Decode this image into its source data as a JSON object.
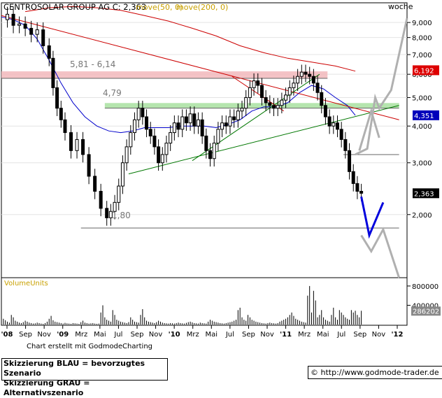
{
  "header": {
    "title": "CENTROSOLAR GROUP AG C: 2,363",
    "ma50": "move(50, 0)",
    "ma200": "move(200, 0)",
    "period": "woche"
  },
  "credit": "Chart erstellt mit GodmodeCharting",
  "legend_blue": "Skizzierung BLAU = bevorzugtes Szenario",
  "legend_gray": "Skizzierung GRAU = Alternativszenario",
  "website": "© http://www.godmode-trader.de",
  "colors": {
    "price": "#000000",
    "ma50": "#0000cc",
    "ma200": "#cc0000",
    "trend_red": "#cc0000",
    "trend_green": "#007700",
    "zone_red": "#f2b8bc",
    "zone_green": "#a8e0a0",
    "scenario_blue": "#0000dd",
    "scenario_gray": "#b0b0b0",
    "badge_red": "#dd0000",
    "badge_blue": "#0000bb"
  },
  "chart_data": {
    "type": "candlestick",
    "interval": "woche",
    "y_scale": "log",
    "ylim": [
      1.22,
      10.5
    ],
    "y_ticks": [
      2,
      3,
      4,
      5,
      6,
      7,
      8,
      9
    ],
    "y_tick_labels": [
      "2,000",
      "3,000",
      "4,000",
      "5,000",
      "6,000",
      "7,000",
      "8,000",
      "9,000"
    ],
    "x_ticks": [
      "'08",
      "Sep",
      "Nov",
      "'09",
      "Mrz",
      "Mai",
      "Jul",
      "Sep",
      "Nov",
      "'10",
      "Mrz",
      "Mai",
      "Jul",
      "Sep",
      "Nov",
      "'11",
      "Mrz",
      "Mai",
      "Jul",
      "Sep",
      "Nov",
      "'12"
    ],
    "last_close": 2.363,
    "last_close_label": "2,363",
    "ma200_value_label": "6,192",
    "ma50_value_label": "4,351",
    "zones": [
      {
        "label": "5,81 - 6,14",
        "low": 5.81,
        "high": 6.14
      },
      {
        "label": "4,79",
        "low": 4.6,
        "high": 4.79
      }
    ],
    "support_label": "1,80",
    "support_value": 1.8,
    "price_path": [
      [
        0,
        9.2
      ],
      [
        3,
        9.6
      ],
      [
        6,
        8.8
      ],
      [
        9,
        8.9
      ],
      [
        12,
        8.6
      ],
      [
        15,
        8.2
      ],
      [
        18,
        8.5
      ],
      [
        21,
        7.5
      ],
      [
        24,
        6.8
      ],
      [
        26,
        5.4
      ],
      [
        28,
        4.6
      ],
      [
        30,
        4.2
      ],
      [
        32,
        3.8
      ],
      [
        35,
        3.3
      ],
      [
        38,
        3.6
      ],
      [
        41,
        3.2
      ],
      [
        44,
        2.7
      ],
      [
        47,
        2.4
      ],
      [
        50,
        2.1
      ],
      [
        53,
        1.95
      ],
      [
        55,
        2.05
      ],
      [
        57,
        2.2
      ],
      [
        59,
        2.5
      ],
      [
        61,
        3.0
      ],
      [
        63,
        3.4
      ],
      [
        65,
        3.8
      ],
      [
        67,
        4.2
      ],
      [
        69,
        4.6
      ],
      [
        71,
        4.3
      ],
      [
        73,
        3.9
      ],
      [
        75,
        3.7
      ],
      [
        77,
        3.4
      ],
      [
        79,
        3.0
      ],
      [
        81,
        3.2
      ],
      [
        83,
        3.5
      ],
      [
        85,
        3.8
      ],
      [
        87,
        4.1
      ],
      [
        89,
        3.9
      ],
      [
        91,
        4.3
      ],
      [
        93,
        4.1
      ],
      [
        95,
        4.4
      ],
      [
        97,
        4.0
      ],
      [
        99,
        4.2
      ],
      [
        101,
        3.7
      ],
      [
        103,
        3.3
      ],
      [
        105,
        3.1
      ],
      [
        107,
        3.5
      ],
      [
        109,
        3.9
      ],
      [
        111,
        4.1
      ],
      [
        113,
        4.0
      ],
      [
        115,
        4.3
      ],
      [
        117,
        4.2
      ],
      [
        119,
        4.5
      ],
      [
        121,
        4.6
      ],
      [
        123,
        5.0
      ],
      [
        125,
        5.4
      ],
      [
        127,
        5.7
      ],
      [
        129,
        5.5
      ],
      [
        131,
        5.0
      ],
      [
        133,
        4.8
      ],
      [
        135,
        4.7
      ],
      [
        137,
        4.6
      ],
      [
        139,
        4.7
      ],
      [
        141,
        4.9
      ],
      [
        143,
        5.1
      ],
      [
        145,
        5.4
      ],
      [
        147,
        5.6
      ],
      [
        149,
        5.9
      ],
      [
        151,
        6.1
      ],
      [
        153,
        6.0
      ],
      [
        155,
        5.9
      ],
      [
        157,
        5.6
      ],
      [
        159,
        5.2
      ],
      [
        161,
        4.7
      ],
      [
        163,
        4.3
      ],
      [
        165,
        4.0
      ],
      [
        167,
        4.1
      ],
      [
        169,
        3.9
      ],
      [
        171,
        3.6
      ],
      [
        173,
        3.3
      ],
      [
        175,
        2.8
      ],
      [
        177,
        2.55
      ],
      [
        179,
        2.4
      ],
      [
        181,
        2.363
      ]
    ],
    "ma50_path": [
      [
        0,
        9.4
      ],
      [
        6,
        9.2
      ],
      [
        12,
        8.8
      ],
      [
        18,
        7.9
      ],
      [
        24,
        6.7
      ],
      [
        30,
        5.6
      ],
      [
        36,
        4.8
      ],
      [
        42,
        4.3
      ],
      [
        48,
        4.0
      ],
      [
        54,
        3.85
      ],
      [
        60,
        3.8
      ],
      [
        66,
        3.85
      ],
      [
        72,
        3.95
      ],
      [
        78,
        3.95
      ],
      [
        84,
        3.95
      ],
      [
        90,
        4.0
      ],
      [
        96,
        4.0
      ],
      [
        102,
        4.0
      ],
      [
        108,
        3.95
      ],
      [
        114,
        4.05
      ],
      [
        120,
        4.2
      ],
      [
        126,
        4.5
      ],
      [
        132,
        4.65
      ],
      [
        138,
        4.65
      ],
      [
        144,
        4.8
      ],
      [
        150,
        5.2
      ],
      [
        156,
        5.5
      ],
      [
        162,
        5.35
      ],
      [
        168,
        5.0
      ],
      [
        174,
        4.7
      ],
      [
        178,
        4.35
      ]
    ],
    "ma200_path": [
      [
        12,
        9.8
      ],
      [
        24,
        10.1
      ],
      [
        36,
        10.2
      ],
      [
        48,
        10.1
      ],
      [
        60,
        9.9
      ],
      [
        72,
        9.5
      ],
      [
        84,
        9.1
      ],
      [
        96,
        8.6
      ],
      [
        108,
        8.1
      ],
      [
        120,
        7.5
      ],
      [
        132,
        7.1
      ],
      [
        144,
        6.8
      ],
      [
        156,
        6.6
      ],
      [
        168,
        6.4
      ],
      [
        178,
        6.15
      ]
    ],
    "trendlines": [
      {
        "color": "red",
        "from": [
          0,
          9.5
        ],
        "to": [
          200,
          4.2
        ]
      },
      {
        "color": "green",
        "from": [
          64,
          2.75
        ],
        "to": [
          200,
          4.7
        ]
      },
      {
        "color": "green",
        "from": [
          96,
          3.05
        ],
        "to": [
          160,
          6.0
        ]
      },
      {
        "color": "red",
        "from": [
          116,
          5.9
        ],
        "to": [
          142,
          4.5
        ]
      }
    ],
    "scenario_blue": [
      [
        181,
        2.3
      ],
      [
        185,
        1.7
      ],
      [
        192,
        2.2
      ]
    ],
    "scenario_gray_upper": [
      [
        178,
        3.2
      ],
      [
        184,
        3.35
      ],
      [
        188,
        5.0
      ],
      [
        190,
        4.6
      ],
      [
        196,
        5.3
      ],
      [
        204,
        9.3
      ]
    ],
    "scenario_gray_mid": [
      [
        180,
        3.3
      ],
      [
        186,
        4.5
      ],
      [
        190,
        3.65
      ]
    ],
    "scenario_gray_lower": [
      [
        181,
        1.7
      ],
      [
        186,
        1.5
      ],
      [
        192,
        1.78
      ],
      [
        200,
        1.22
      ]
    ],
    "volume": {
      "label": "VolumeUnits",
      "tick_labels": [
        "800000",
        "400000"
      ],
      "tick_values": [
        800000,
        400000
      ],
      "last_value_label": "286202",
      "max": 900000,
      "values": [
        150000,
        120000,
        90000,
        60000,
        40000,
        200000,
        150000,
        80000,
        60000,
        40000,
        30000,
        50000,
        80000,
        60000,
        40000,
        30000,
        20000,
        25000,
        40000,
        30000,
        20000,
        15000,
        30000,
        60000,
        120000,
        180000,
        90000,
        60000,
        50000,
        40000,
        30000,
        20000,
        35000,
        25000,
        20000,
        15000,
        30000,
        25000,
        20000,
        15000,
        50000,
        80000,
        40000,
        30000,
        20000,
        25000,
        30000,
        20000,
        15000,
        20000,
        250000,
        400000,
        150000,
        100000,
        80000,
        60000,
        300000,
        200000,
        100000,
        80000,
        60000,
        50000,
        40000,
        30000,
        50000,
        150000,
        100000,
        60000,
        50000,
        40000,
        200000,
        320000,
        150000,
        80000,
        60000,
        50000,
        40000,
        30000,
        50000,
        80000,
        60000,
        40000,
        30000,
        25000,
        20000,
        30000,
        25000,
        20000,
        30000,
        40000,
        30000,
        25000,
        20000,
        35000,
        50000,
        60000,
        45000,
        30000,
        25000,
        20000,
        40000,
        30000,
        25000,
        20000,
        60000,
        100000,
        80000,
        60000,
        50000,
        40000,
        30000,
        25000,
        20000,
        30000,
        40000,
        50000,
        60000,
        80000,
        100000,
        300000,
        350000,
        150000,
        100000,
        80000,
        200000,
        150000,
        100000,
        80000,
        60000,
        50000,
        40000,
        30000,
        25000,
        20000,
        30000,
        40000,
        30000,
        25000,
        20000,
        30000,
        60000,
        80000,
        100000,
        120000,
        150000,
        200000,
        250000,
        180000,
        120000,
        100000,
        80000,
        60000,
        50000,
        40000,
        600000,
        800000,
        250000,
        700000,
        500000,
        150000,
        200000,
        300000,
        150000,
        100000,
        80000,
        60000,
        200000,
        350000,
        150000,
        100000,
        300000,
        250000,
        200000,
        150000,
        120000,
        100000,
        300000,
        250000,
        286202,
        200000,
        150000,
        286202
      ]
    }
  }
}
